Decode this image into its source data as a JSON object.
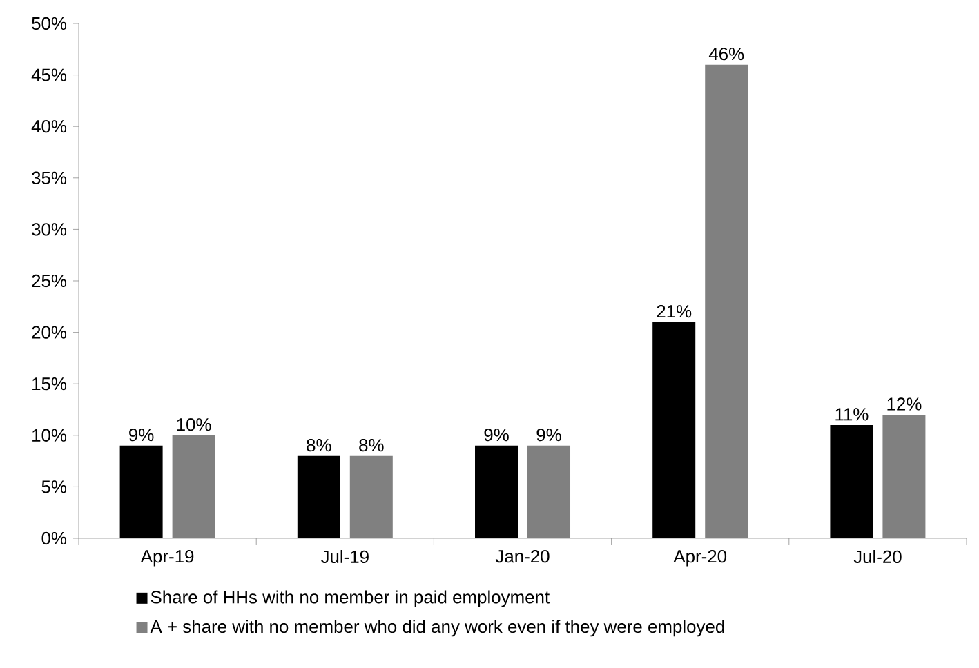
{
  "chart_data": {
    "type": "bar",
    "categories": [
      "Apr-19",
      "Jul-19",
      "Jan-20",
      "Apr-20",
      "Jul-20"
    ],
    "series": [
      {
        "name": "Share of HHs with no member in paid employment",
        "color": "#000000",
        "values": [
          9,
          8,
          9,
          21,
          11
        ],
        "value_labels": [
          "9%",
          "8%",
          "9%",
          "21%",
          "11%"
        ]
      },
      {
        "name": "A + share with no member who did any work even if they were employed",
        "color": "#808080",
        "values": [
          10,
          8,
          9,
          46,
          12
        ],
        "value_labels": [
          "10%",
          "8%",
          "9%",
          "46%",
          "12%"
        ]
      }
    ],
    "ylim": [
      0,
      50
    ],
    "yticks": [
      {
        "value": 0,
        "label": "0%"
      },
      {
        "value": 5,
        "label": "5%"
      },
      {
        "value": 10,
        "label": "10%"
      },
      {
        "value": 15,
        "label": "15%"
      },
      {
        "value": 20,
        "label": "20%"
      },
      {
        "value": 25,
        "label": "25%"
      },
      {
        "value": 30,
        "label": "30%"
      },
      {
        "value": 35,
        "label": "35%"
      },
      {
        "value": 40,
        "label": "40%"
      },
      {
        "value": 45,
        "label": "45%"
      },
      {
        "value": 50,
        "label": "50%"
      }
    ],
    "legend": "bottom"
  }
}
